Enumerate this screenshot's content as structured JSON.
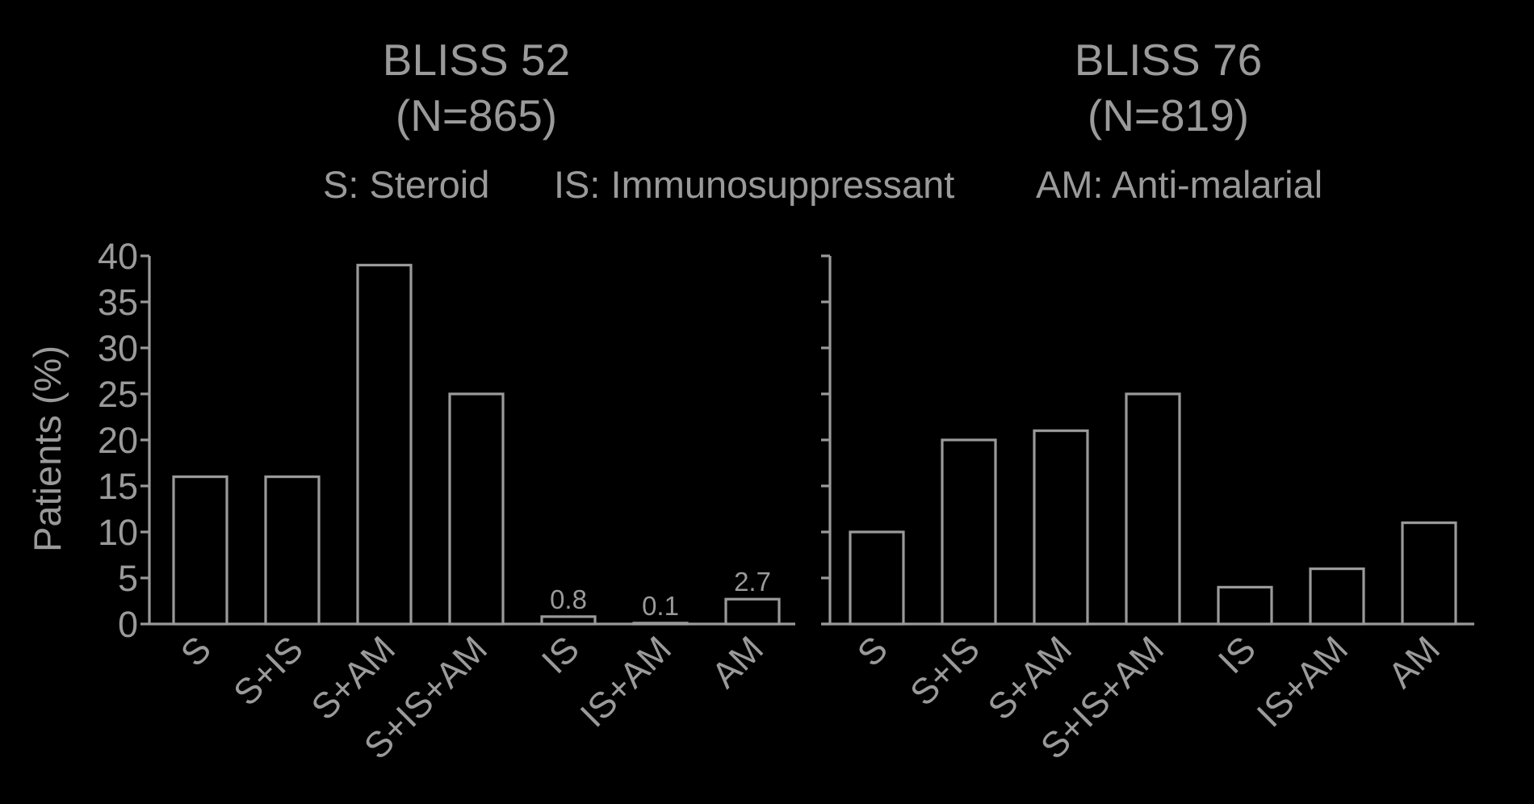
{
  "legend": {
    "items": [
      "S: Steroid",
      "IS: Immunosuppressant",
      "AM: Anti-malarial"
    ]
  },
  "chart_data": [
    {
      "type": "bar",
      "title": "BLISS 52",
      "subtitle": "(N=865)",
      "ylabel": "Patients (%)",
      "xlabel": "",
      "ylim": [
        0,
        40
      ],
      "yticks": [
        "0",
        "5",
        "10",
        "15",
        "20",
        "25",
        "30",
        "35",
        "40"
      ],
      "categories": [
        "S",
        "S+IS",
        "S+AM",
        "S+IS+AM",
        "IS",
        "IS+AM",
        "AM"
      ],
      "values": [
        16,
        16,
        39,
        25,
        0.8,
        0.1,
        2.7
      ],
      "data_labels": [
        "",
        "",
        "",
        "",
        "0.8",
        "0.1",
        "2.7"
      ]
    },
    {
      "type": "bar",
      "title": "BLISS 76",
      "subtitle": "(N=819)",
      "ylabel": "",
      "xlabel": "",
      "ylim": [
        0,
        40
      ],
      "yticks": [],
      "categories": [
        "S",
        "S+IS",
        "S+AM",
        "S+IS+AM",
        "IS",
        "IS+AM",
        "AM"
      ],
      "values": [
        10,
        20,
        21,
        25,
        4,
        6,
        11
      ],
      "data_labels": [
        "",
        "",
        "",
        "",
        "",
        "",
        ""
      ]
    }
  ]
}
